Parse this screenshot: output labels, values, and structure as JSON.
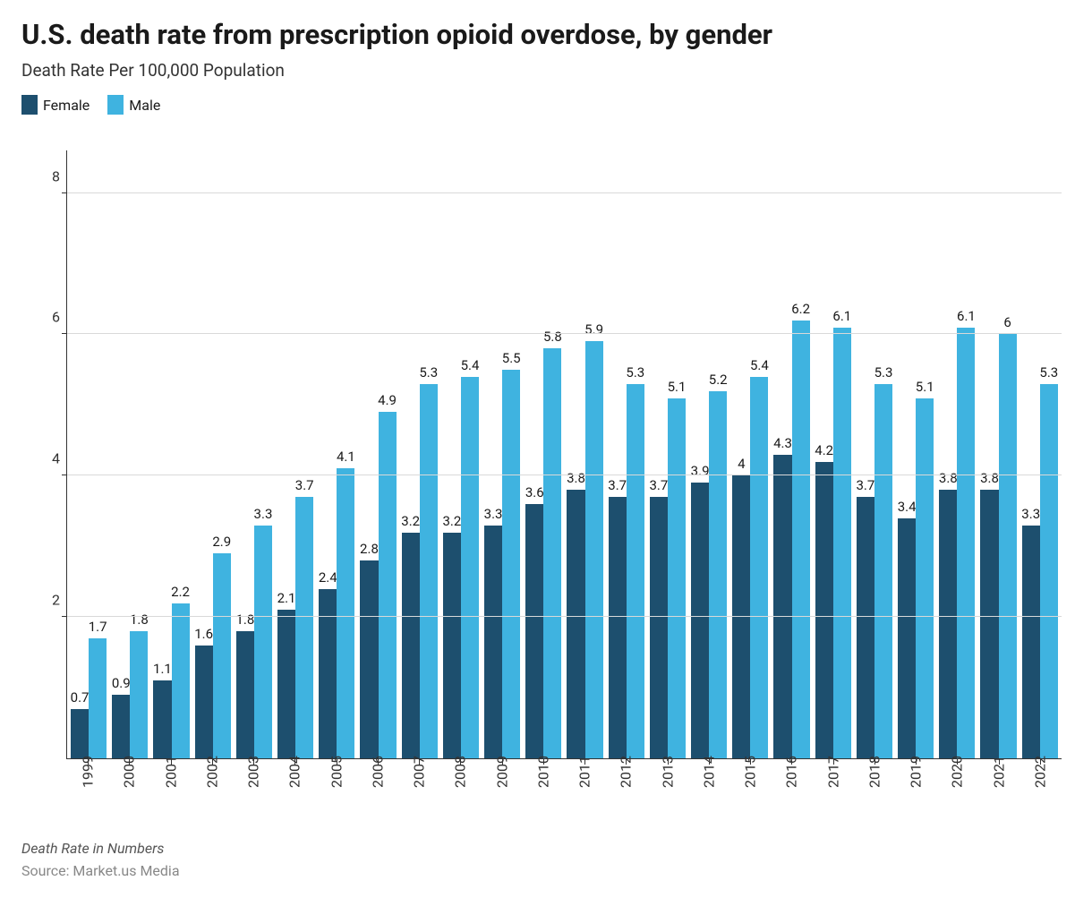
{
  "title": "U.S. death rate from prescription opioid overdose, by gender",
  "subtitle": "Death Rate Per 100,000 Population",
  "legend": [
    {
      "label": "Female",
      "color": "#1d4f6e"
    },
    {
      "label": "Male",
      "color": "#3fb3e0"
    }
  ],
  "chart": {
    "type": "bar",
    "background_color": "#ffffff",
    "grid_color": "#d9d9d9",
    "axis_color": "#333333",
    "ylim": [
      0,
      8.6
    ],
    "yticks": [
      2,
      4,
      6,
      8
    ],
    "label_fontsize": 15,
    "axis_fontsize": 16,
    "categories": [
      "1999",
      "2000",
      "2001",
      "2002",
      "2003",
      "2004",
      "2005",
      "2006",
      "2007",
      "2008",
      "2009",
      "2010",
      "2011",
      "2012",
      "2013",
      "2014",
      "2015",
      "2016",
      "2017",
      "2018",
      "2019",
      "2020",
      "2021",
      "2022"
    ],
    "series": [
      {
        "name": "Female",
        "color": "#1d4f6e",
        "values": [
          0.7,
          0.9,
          1.1,
          1.6,
          1.8,
          2.1,
          2.4,
          2.8,
          3.2,
          3.2,
          3.3,
          3.6,
          3.8,
          3.7,
          3.7,
          3.9,
          4,
          4.3,
          4.2,
          3.7,
          3.4,
          3.8,
          3.8,
          3.3
        ]
      },
      {
        "name": "Male",
        "color": "#3fb3e0",
        "values": [
          1.7,
          1.8,
          2.2,
          2.9,
          3.3,
          3.7,
          4.1,
          4.9,
          5.3,
          5.4,
          5.5,
          5.8,
          5.9,
          5.3,
          5.1,
          5.2,
          5.4,
          6.2,
          6.1,
          5.3,
          5.1,
          6.1,
          6,
          5.3
        ]
      }
    ]
  },
  "footnote": "Death Rate in Numbers",
  "source": "Source: Market.us Media"
}
